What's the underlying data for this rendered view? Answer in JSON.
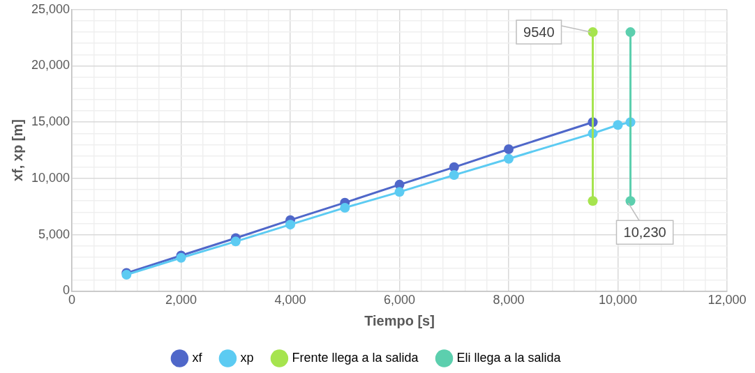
{
  "chart_data": {
    "type": "line",
    "xlabel": "Tiempo [s]",
    "ylabel": "xf, xp [m]",
    "series": [
      {
        "name": "xf",
        "color": "#4f67c9",
        "x": [
          1000,
          2000,
          3000,
          4000,
          5000,
          6000,
          7000,
          8000,
          9540
        ],
        "values": [
          1600,
          3150,
          4700,
          6300,
          7850,
          9450,
          11000,
          12600,
          15000
        ]
      },
      {
        "name": "xp",
        "color": "#5ccbf2",
        "x": [
          1000,
          2000,
          3000,
          4000,
          5000,
          6000,
          7000,
          8000,
          9540,
          10000,
          10230
        ],
        "values": [
          1450,
          2950,
          4400,
          5900,
          7400,
          8800,
          10300,
          11750,
          14000,
          14750,
          15000
        ]
      },
      {
        "name": "Frente llega a la salida",
        "color": "#a6e44e",
        "x": [
          9540,
          9540
        ],
        "values": [
          8000,
          23000
        ]
      },
      {
        "name": "Eli llega a la salida",
        "color": "#5ccfae",
        "x": [
          10230,
          10230
        ],
        "values": [
          8000,
          23000
        ]
      }
    ],
    "annotations": [
      {
        "text": "9540",
        "x": 9540,
        "y": 23000
      },
      {
        "text": "10,230",
        "x": 10230,
        "y": 8000
      }
    ],
    "xlim": [
      0,
      12000
    ],
    "xticks": [
      0,
      {
        "value": 400,
        "label": null
      },
      {
        "value": 800,
        "label": null
      },
      {
        "value": 1200,
        "label": null
      },
      {
        "value": 1600,
        "label": null
      },
      {
        "value": 2000,
        "label": "2,000"
      },
      {
        "value": 2400,
        "label": null
      },
      {
        "value": 2800,
        "label": null
      },
      {
        "value": 3200,
        "label": null
      },
      {
        "value": 3600,
        "label": null
      },
      {
        "value": 4000,
        "label": "4,000"
      },
      {
        "value": 4400,
        "label": null
      },
      {
        "value": 4800,
        "label": null
      },
      {
        "value": 5200,
        "label": null
      },
      {
        "value": 5600,
        "label": null
      },
      {
        "value": 6000,
        "label": "6,000"
      },
      {
        "value": 6400,
        "label": null
      },
      {
        "value": 6800,
        "label": null
      },
      {
        "value": 7200,
        "label": null
      },
      {
        "value": 7600,
        "label": null
      },
      {
        "value": 8000,
        "label": "8,000"
      },
      {
        "value": 8400,
        "label": null
      },
      {
        "value": 8800,
        "label": null
      },
      {
        "value": 9200,
        "label": null
      },
      {
        "value": 9600,
        "label": null
      },
      {
        "value": 10000,
        "label": "10,000"
      },
      {
        "value": 10400,
        "label": null
      },
      {
        "value": 10800,
        "label": null
      },
      {
        "value": 11200,
        "label": null
      },
      {
        "value": 11600,
        "label": null
      },
      {
        "value": 12000,
        "label": "12,000"
      }
    ],
    "ylim": [
      0,
      25000
    ],
    "yticks": [
      0,
      {
        "value": 1000,
        "label": null
      },
      {
        "value": 2000,
        "label": null
      },
      {
        "value": 3000,
        "label": null
      },
      {
        "value": 4000,
        "label": null
      },
      {
        "value": 5000,
        "label": "5,000"
      },
      {
        "value": 6000,
        "label": null
      },
      {
        "value": 7000,
        "label": null
      },
      {
        "value": 8000,
        "label": null
      },
      {
        "value": 9000,
        "label": null
      },
      {
        "value": 10000,
        "label": "10,000"
      },
      {
        "value": 11000,
        "label": null
      },
      {
        "value": 12000,
        "label": null
      },
      {
        "value": 13000,
        "label": null
      },
      {
        "value": 14000,
        "label": null
      },
      {
        "value": 15000,
        "label": "15,000"
      },
      {
        "value": 16000,
        "label": null
      },
      {
        "value": 17000,
        "label": null
      },
      {
        "value": 18000,
        "label": null
      },
      {
        "value": 19000,
        "label": null
      },
      {
        "value": 20000,
        "label": "20,000"
      },
      {
        "value": 21000,
        "label": null
      },
      {
        "value": 22000,
        "label": null
      },
      {
        "value": 23000,
        "label": null
      },
      {
        "value": 24000,
        "label": null
      },
      {
        "value": 25000,
        "label": "25,000"
      }
    ],
    "grid": true,
    "legend": "bottom",
    "marker": "circle",
    "line_style": "solid"
  }
}
